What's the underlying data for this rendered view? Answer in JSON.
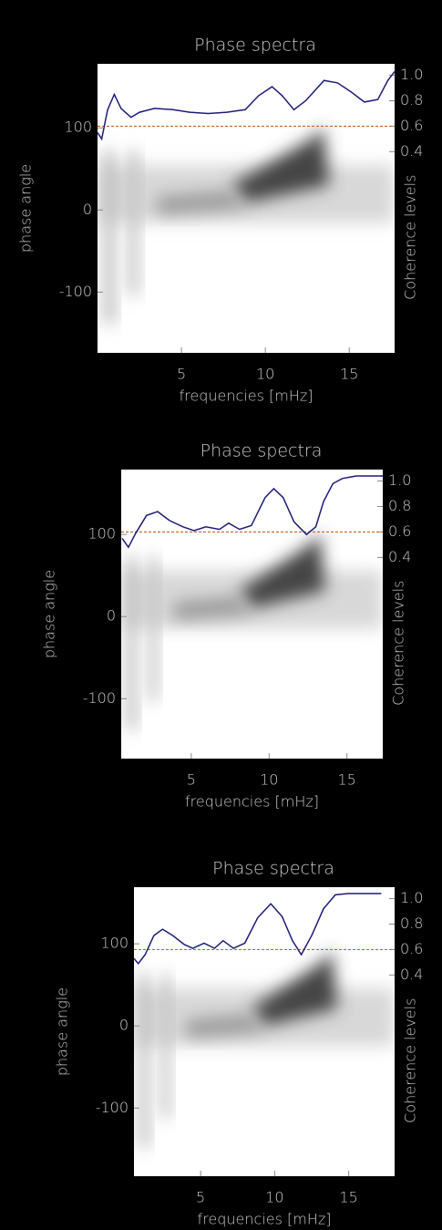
{
  "chart_data": [
    {
      "type": "line",
      "title": "Phase spectra",
      "x_label": "frequencies [mHz]",
      "y_label": "phase angle",
      "y2_label": "Coherence levels",
      "xlim": [
        0,
        17.7
      ],
      "xticks": [
        5,
        10,
        15
      ],
      "ylim": [
        -174,
        178
      ],
      "yticks": [
        -100,
        0,
        100
      ],
      "y2lim": [
        -1.18,
        1.09
      ],
      "y2ticks": [
        0.4,
        0.6,
        0.8,
        {
          "value": 1,
          "label": "1.0"
        }
      ],
      "reference_line": {
        "value": 0.6,
        "axis": "y2",
        "color": "#c8642c"
      },
      "axis": "y2",
      "color": "#1c1c78",
      "x": [
        0.0,
        0.25,
        0.6,
        1.0,
        1.4,
        2.0,
        2.5,
        3.4,
        4.5,
        5.5,
        6.6,
        7.7,
        8.8,
        9.6,
        10.4,
        11.0,
        11.7,
        12.4,
        13.5,
        14.3,
        15.1,
        15.9,
        16.7,
        17.3,
        17.7
      ],
      "values": [
        0.55,
        0.5,
        0.73,
        0.85,
        0.74,
        0.67,
        0.71,
        0.74,
        0.73,
        0.71,
        0.7,
        0.71,
        0.73,
        0.84,
        0.91,
        0.84,
        0.73,
        0.8,
        0.96,
        0.94,
        0.87,
        0.79,
        0.81,
        0.96,
        1.03
      ]
    },
    {
      "type": "line",
      "title": "Phase spectra",
      "x_label": "frequencies [mHz]",
      "y_label": "phase angle",
      "y2_label": "Coherence levels",
      "xlim": [
        0.5,
        17.3
      ],
      "xticks": [
        5,
        10,
        15
      ],
      "ylim": [
        -173,
        179
      ],
      "yticks": [
        -100,
        0,
        100
      ],
      "y2lim": [
        -1.18,
        1.09
      ],
      "y2ticks": [
        0.4,
        0.6,
        0.8,
        {
          "value": 1,
          "label": "1.0"
        }
      ],
      "reference_line": {
        "value": 0.6,
        "axis": "y2",
        "color": "#c8642c"
      },
      "axis": "y2",
      "color": "#1c1c78",
      "x": [
        0.56,
        0.96,
        1.43,
        2.13,
        2.84,
        3.6,
        4.47,
        5.18,
        5.94,
        6.81,
        7.4,
        8.1,
        8.86,
        9.74,
        10.3,
        10.9,
        11.6,
        12.4,
        13.0,
        13.5,
        14.1,
        14.7,
        15.6,
        17.3
      ],
      "values": [
        0.55,
        0.48,
        0.59,
        0.73,
        0.76,
        0.69,
        0.64,
        0.61,
        0.64,
        0.62,
        0.67,
        0.62,
        0.65,
        0.87,
        0.94,
        0.87,
        0.68,
        0.58,
        0.64,
        0.84,
        0.98,
        1.02,
        1.04,
        1.04
      ]
    },
    {
      "type": "line",
      "title": "Phase spectra",
      "x_label": "frequencies [mHz]",
      "y_label": "phase angle",
      "y2_label": "Coherence levels",
      "xlim": [
        0.5,
        18.1
      ],
      "xticks": [
        5,
        10,
        15
      ],
      "ylim": [
        -183,
        169
      ],
      "yticks": [
        -100,
        0,
        100
      ],
      "y2lim": [
        -1.18,
        1.09
      ],
      "y2ticks": [
        0.4,
        0.6,
        0.8,
        {
          "value": 1,
          "label": "1.0"
        }
      ],
      "reference_line": {
        "value": 0.6,
        "axis": "y2",
        "color": "#c8642c"
      },
      "axis": "y2",
      "color": "#1c1c78",
      "x": [
        0.5,
        0.79,
        1.26,
        1.84,
        2.43,
        3.13,
        3.89,
        4.47,
        5.23,
        5.94,
        6.52,
        7.22,
        7.98,
        8.86,
        9.74,
        10.5,
        11.2,
        11.8,
        12.5,
        13.3,
        14.1,
        15.0,
        17.2
      ],
      "values": [
        0.53,
        0.49,
        0.56,
        0.71,
        0.76,
        0.71,
        0.64,
        0.61,
        0.65,
        0.61,
        0.67,
        0.61,
        0.65,
        0.85,
        0.96,
        0.86,
        0.67,
        0.56,
        0.71,
        0.92,
        1.03,
        1.04,
        1.04
      ]
    }
  ]
}
